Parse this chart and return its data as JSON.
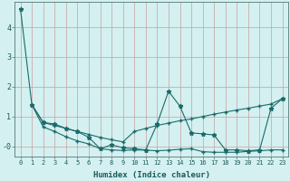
{
  "title": "",
  "xlabel": "Humidex (Indice chaleur)",
  "ylabel": "",
  "background_color": "#d4f0f0",
  "grid_color": "#c8a0a0",
  "line_color": "#1a6b6b",
  "xlim": [
    -0.5,
    23.5
  ],
  "ylim": [
    -0.35,
    4.85
  ],
  "yticks": [
    0,
    1,
    2,
    3,
    4
  ],
  "ytick_labels": [
    "-0",
    "1",
    "2",
    "3",
    "4"
  ],
  "xticks": [
    0,
    1,
    2,
    3,
    4,
    5,
    6,
    7,
    8,
    9,
    10,
    11,
    12,
    13,
    14,
    15,
    16,
    17,
    18,
    19,
    20,
    21,
    22,
    23
  ],
  "line1_x": [
    0,
    1,
    2,
    3,
    4,
    5,
    6,
    7,
    8,
    9,
    10,
    11,
    12,
    13,
    14,
    15,
    16,
    17,
    18,
    19,
    20,
    21,
    22,
    23
  ],
  "line1_y": [
    4.62,
    1.4,
    0.8,
    0.75,
    0.6,
    0.5,
    0.3,
    -0.08,
    0.05,
    -0.05,
    -0.08,
    -0.12,
    0.75,
    1.85,
    1.35,
    0.45,
    0.42,
    0.38,
    -0.12,
    -0.12,
    -0.15,
    -0.12,
    1.28,
    1.6
  ],
  "line2_x": [
    1,
    2,
    3,
    4,
    5,
    6,
    7,
    8,
    9,
    10,
    11,
    12,
    13,
    14,
    15,
    16,
    17,
    18,
    19,
    20,
    21,
    22,
    23
  ],
  "line2_y": [
    1.4,
    0.8,
    0.7,
    0.6,
    0.5,
    0.4,
    0.3,
    0.22,
    0.15,
    0.5,
    0.6,
    0.7,
    0.78,
    0.86,
    0.92,
    1.0,
    1.08,
    1.15,
    1.22,
    1.28,
    1.35,
    1.42,
    1.6
  ],
  "line3_x": [
    1,
    2,
    3,
    4,
    5,
    6,
    7,
    8,
    9,
    10,
    11,
    12,
    13,
    14,
    15,
    16,
    17,
    18,
    19,
    20,
    21,
    22,
    23
  ],
  "line3_y": [
    1.4,
    0.65,
    0.5,
    0.32,
    0.18,
    0.08,
    -0.08,
    -0.12,
    -0.14,
    -0.12,
    -0.13,
    -0.15,
    -0.13,
    -0.1,
    -0.08,
    -0.18,
    -0.2,
    -0.2,
    -0.2,
    -0.17,
    -0.15,
    -0.12,
    -0.12
  ]
}
